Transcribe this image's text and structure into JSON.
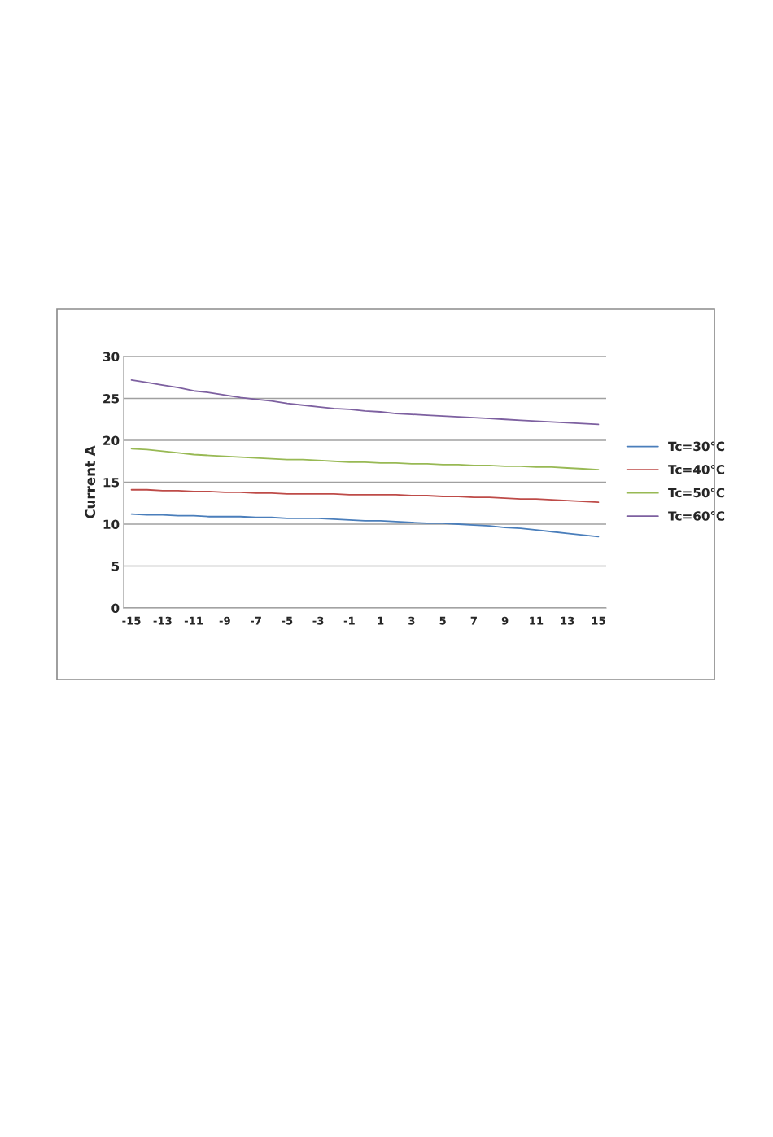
{
  "chart_data": {
    "type": "line",
    "ylabel": "Current A",
    "categories": [
      "-15",
      null,
      "-13",
      null,
      "-11",
      null,
      "-9",
      null,
      "-7",
      null,
      "-5",
      null,
      "-3",
      null,
      "-1",
      null,
      "1",
      null,
      "3",
      null,
      "5",
      null,
      "7",
      null,
      "9",
      null,
      "11",
      null,
      "13",
      null,
      "15"
    ],
    "ylim": [
      0,
      30
    ],
    "yticks": [
      0,
      5,
      10,
      15,
      20,
      25,
      30
    ],
    "grid": "y",
    "legend": "right",
    "marker": "none",
    "line_style": "solid",
    "series": [
      {
        "name": "Tc=30℃",
        "color": "#4a7ebb",
        "values": [
          11.2,
          11.1,
          11.1,
          11.0,
          11.0,
          10.9,
          10.9,
          10.9,
          10.8,
          10.8,
          10.7,
          10.7,
          10.7,
          10.6,
          10.5,
          10.4,
          10.4,
          10.3,
          10.2,
          10.1,
          10.1,
          10.0,
          9.9,
          9.8,
          9.6,
          9.5,
          9.3,
          9.1,
          8.9,
          8.7,
          8.5
        ]
      },
      {
        "name": "Tc=40℃",
        "color": "#be4b48",
        "values": [
          14.1,
          14.1,
          14.0,
          14.0,
          13.9,
          13.9,
          13.8,
          13.8,
          13.7,
          13.7,
          13.6,
          13.6,
          13.6,
          13.6,
          13.5,
          13.5,
          13.5,
          13.5,
          13.4,
          13.4,
          13.3,
          13.3,
          13.2,
          13.2,
          13.1,
          13.0,
          13.0,
          12.9,
          12.8,
          12.7,
          12.6
        ]
      },
      {
        "name": "Tc=50℃",
        "color": "#98b954",
        "values": [
          19.0,
          18.9,
          18.7,
          18.5,
          18.3,
          18.2,
          18.1,
          18.0,
          17.9,
          17.8,
          17.7,
          17.7,
          17.6,
          17.5,
          17.4,
          17.4,
          17.3,
          17.3,
          17.2,
          17.2,
          17.1,
          17.1,
          17.0,
          17.0,
          16.9,
          16.9,
          16.8,
          16.8,
          16.7,
          16.6,
          16.5
        ]
      },
      {
        "name": "Tc=60℃",
        "color": "#7d60a0",
        "values": [
          27.2,
          26.9,
          26.6,
          26.3,
          25.9,
          25.7,
          25.4,
          25.1,
          24.9,
          24.7,
          24.4,
          24.2,
          24.0,
          23.8,
          23.7,
          23.5,
          23.4,
          23.2,
          23.1,
          23.0,
          22.9,
          22.8,
          22.7,
          22.6,
          22.5,
          22.4,
          22.3,
          22.2,
          22.1,
          22.0,
          21.9
        ]
      }
    ]
  }
}
